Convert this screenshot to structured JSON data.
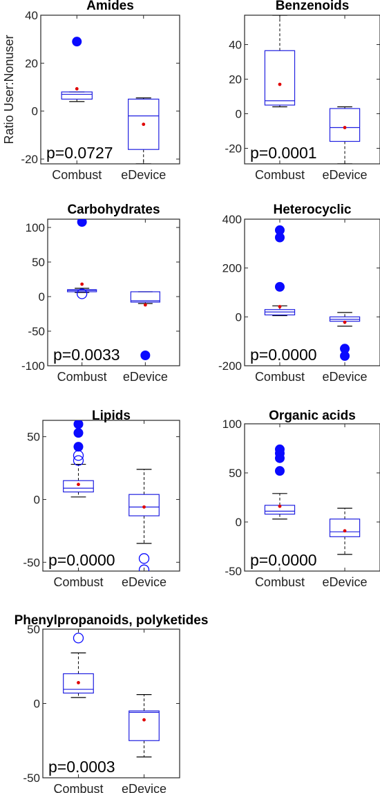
{
  "chart_data": [
    {
      "type": "box",
      "title": "Amides",
      "ylabel": "Ratio User:Nonuser",
      "ylim": [
        -22,
        40
      ],
      "yticks": [
        -20,
        0,
        20,
        40
      ],
      "categories": [
        "Combust",
        "eDevice"
      ],
      "pvalue": "p=0.0727",
      "boxes": [
        {
          "category": "Combust",
          "q1": 5,
          "median": 7,
          "q3": 8,
          "whisker_low": 4,
          "whisker_high": 8,
          "mean": 9.3,
          "outliers_filled": [
            29
          ],
          "outliers_open": []
        },
        {
          "category": "eDevice",
          "q1": -16,
          "median": -2,
          "q3": 5,
          "whisker_low": -22,
          "whisker_high": 5.5,
          "mean": -5.5,
          "outliers_filled": [],
          "outliers_open": []
        }
      ]
    },
    {
      "type": "box",
      "title": "Benzenoids",
      "ylabel": "",
      "ylim": [
        -29,
        57
      ],
      "yticks": [
        -20,
        0,
        20,
        40
      ],
      "categories": [
        "Combust",
        "eDevice"
      ],
      "pvalue": "p=0.0001",
      "boxes": [
        {
          "category": "Combust",
          "q1": 5,
          "median": 7.5,
          "q3": 36.5,
          "whisker_low": 4,
          "whisker_high": 57,
          "mean": 17,
          "outliers_filled": [],
          "outliers_open": []
        },
        {
          "category": "eDevice",
          "q1": -16,
          "median": -8,
          "q3": 3,
          "whisker_low": -29,
          "whisker_high": 4,
          "mean": -8,
          "outliers_filled": [],
          "outliers_open": []
        }
      ]
    },
    {
      "type": "box",
      "title": "Carbohydrates",
      "ylabel": "",
      "ylim": [
        -100,
        112
      ],
      "yticks": [
        -100,
        -50,
        0,
        50,
        100
      ],
      "categories": [
        "Combust",
        "eDevice"
      ],
      "pvalue": "p=0.0033",
      "boxes": [
        {
          "category": "Combust",
          "q1": 7,
          "median": 9,
          "q3": 10,
          "whisker_low": 6,
          "whisker_high": 12,
          "mean": 18,
          "outliers_filled": [
            108
          ],
          "outliers_open": [
            4
          ]
        },
        {
          "category": "eDevice",
          "q1": -8,
          "median": -6,
          "q3": 7,
          "whisker_low": -10,
          "whisker_high": 7,
          "mean": -12,
          "outliers_filled": [
            -85
          ],
          "outliers_open": []
        }
      ]
    },
    {
      "type": "box",
      "title": "Heterocyclic",
      "ylabel": "",
      "ylim": [
        -200,
        400
      ],
      "yticks": [
        -200,
        0,
        200,
        400
      ],
      "categories": [
        "Combust",
        "eDevice"
      ],
      "pvalue": "p=0.0000",
      "boxes": [
        {
          "category": "Combust",
          "q1": 8,
          "median": 20,
          "q3": 30,
          "whisker_low": 5,
          "whisker_high": 45,
          "mean": 42,
          "outliers_filled": [
            355,
            325,
            123
          ],
          "outliers_open": []
        },
        {
          "category": "eDevice",
          "q1": -18,
          "median": -10,
          "q3": 0,
          "whisker_low": -38,
          "whisker_high": 18,
          "mean": -22,
          "outliers_filled": [
            -130,
            -160
          ],
          "outliers_open": []
        }
      ]
    },
    {
      "type": "box",
      "title": "Lipids",
      "ylabel": "",
      "ylim": [
        -57,
        63
      ],
      "yticks": [
        -50,
        0,
        50
      ],
      "categories": [
        "Combust",
        "eDevice"
      ],
      "pvalue": "p=0.0000",
      "boxes": [
        {
          "category": "Combust",
          "q1": 6,
          "median": 9,
          "q3": 15,
          "whisker_low": 2,
          "whisker_high": 28,
          "mean": 12,
          "outliers_filled": [
            60,
            53,
            42
          ],
          "outliers_open": [
            35,
            31
          ]
        },
        {
          "category": "eDevice",
          "q1": -13,
          "median": -6,
          "q3": 4,
          "whisker_low": -35,
          "whisker_high": 24,
          "mean": -6,
          "outliers_filled": [],
          "outliers_open": [
            -47,
            -56
          ]
        }
      ]
    },
    {
      "type": "box",
      "title": "Organic acids",
      "ylabel": "",
      "ylim": [
        -50,
        100
      ],
      "yticks": [
        -50,
        0,
        50,
        100
      ],
      "categories": [
        "Combust",
        "eDevice"
      ],
      "pvalue": "p=0.0000",
      "boxes": [
        {
          "category": "Combust",
          "q1": 8,
          "median": 11,
          "q3": 17,
          "whisker_low": 3,
          "whisker_high": 29,
          "mean": 16,
          "outliers_filled": [
            74,
            70,
            65,
            52
          ],
          "outliers_open": []
        },
        {
          "category": "eDevice",
          "q1": -15,
          "median": -10,
          "q3": 3,
          "whisker_low": -33,
          "whisker_high": 14,
          "mean": -9,
          "outliers_filled": [],
          "outliers_open": []
        }
      ]
    },
    {
      "type": "box",
      "title": "Phenylpropanoids, polyketides",
      "ylabel": "",
      "ylim": [
        -50,
        50
      ],
      "yticks": [
        -50,
        0,
        50
      ],
      "categories": [
        "Combust",
        "eDevice"
      ],
      "pvalue": "p=0.0003",
      "boxes": [
        {
          "category": "Combust",
          "q1": 7,
          "median": 9.5,
          "q3": 20,
          "whisker_low": 4,
          "whisker_high": 34,
          "mean": 14,
          "outliers_filled": [],
          "outliers_open": [
            44
          ]
        },
        {
          "category": "eDevice",
          "q1": -25,
          "median": -6,
          "q3": -5,
          "whisker_low": -36,
          "whisker_high": 6,
          "mean": -11,
          "outliers_filled": [],
          "outliers_open": []
        }
      ]
    }
  ],
  "colors": {
    "box": "#1f1fe0",
    "outlier": "#0a0aff",
    "mean": "#e00000",
    "whisker": "#000000",
    "axis": "#262626"
  }
}
